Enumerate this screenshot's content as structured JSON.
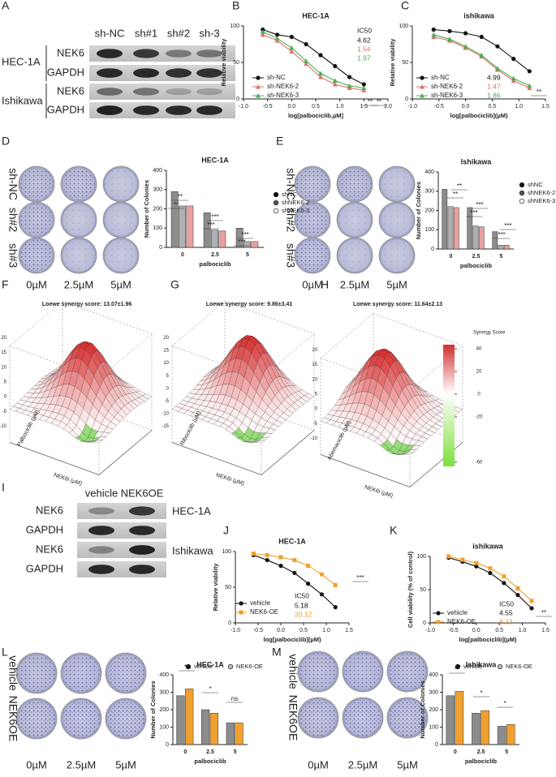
{
  "panel_labels": [
    "A",
    "B",
    "C",
    "D",
    "E",
    "F",
    "G",
    "H",
    "I",
    "J",
    "K",
    "L",
    "M"
  ],
  "blot_a": {
    "lanes": [
      "sh-NC",
      "sh#1",
      "sh#2",
      "sh-3"
    ],
    "cell_lines": [
      "HEC-1A",
      "Ishikawa"
    ],
    "proteins": [
      "NEK6",
      "GAPDH",
      "NEK6",
      "GAPDH"
    ]
  },
  "blot_i": {
    "lanes": [
      "vehicle",
      "NEK6OE"
    ],
    "cell_lines": [
      "HEC-1A",
      "Ishikawa"
    ],
    "proteins": [
      "NEK6",
      "GAPDH",
      "NEK6",
      "GAPDH"
    ]
  },
  "colony_d": {
    "rows": [
      "sh-NC",
      "sh#2",
      "sh#3"
    ],
    "columns": [
      "0µM",
      "2.5µM",
      "5µM"
    ]
  },
  "colony_e": {
    "rows": [
      "sh-NC",
      "sh#2",
      "sh#3"
    ],
    "columns": [
      "0µM",
      "2.5µM",
      "5µM"
    ]
  },
  "colony_l": {
    "rows": [
      "vehicle",
      "NEK6OE"
    ],
    "columns": [
      "0µM",
      "2.5µM",
      "5µM"
    ]
  },
  "colony_m": {
    "rows": [
      "vehicle",
      "NEK6OE"
    ],
    "columns": [
      "0µM",
      "2.5µM",
      "5µM"
    ]
  },
  "synergy": [
    {
      "title": "Loewe synergy score: 13.07±1.96",
      "drug_label": "Palbociclib (µM)",
      "inhibitor_label": "NEK6i (µM)",
      "zticks": [
        20,
        15,
        10,
        5,
        0,
        -5,
        -10
      ]
    },
    {
      "title": "Loewe synergy score: 9.86±3.41",
      "drug_label": "Ribociclib (µM)",
      "inhibitor_label": "NEK6i (µM)",
      "zticks": [
        20,
        15,
        10,
        5,
        0,
        -5,
        -10,
        -15
      ]
    },
    {
      "title": "Loewe synergy score: 11.64±2.13",
      "drug_label": "Abemaciclib (µM)",
      "inhibitor_label": "NEK6i (µM)",
      "zticks": [
        20,
        15,
        10,
        5,
        0,
        -5,
        -10
      ]
    }
  ],
  "colorbar": {
    "title": "Synergy Score",
    "ticks": [
      40,
      20,
      0,
      -20,
      -60
    ]
  },
  "chart_data": [
    {
      "type": "line",
      "title": "HEC-1A",
      "x_label": "log[palbociclib,µM]",
      "y_label": "Relative viability",
      "x": [
        -0.6,
        -0.3,
        0,
        0.3,
        0.6,
        0.9,
        1.2,
        1.5
      ],
      "xlim": [
        -1.0,
        2.0
      ],
      "xticks": [
        {
          "value": -1,
          "label": "-1.0"
        },
        {
          "value": -0.5,
          "label": "-0.5"
        },
        {
          "value": 0,
          "label": "0.0"
        },
        {
          "value": 0.5,
          "label": "0.5"
        },
        {
          "value": 1,
          "label": "1.0"
        },
        {
          "value": 1.5,
          "label": "1.5"
        },
        {
          "value": 2,
          "label": "2.0"
        }
      ],
      "ylim": [
        0,
        100
      ],
      "yticks": [
        0,
        50,
        100
      ],
      "ic50_label": "IC50",
      "series": [
        {
          "name": "sh-NC",
          "color": "#111111",
          "marker": "circle",
          "ic50": "4.62",
          "values": [
            95,
            88,
            85,
            75,
            60,
            45,
            30,
            20
          ]
        },
        {
          "name": "sh-NEK6-2",
          "color": "#e0706a",
          "marker": "triangle",
          "ic50": "1.54",
          "values": [
            88,
            80,
            65,
            48,
            30,
            20,
            15,
            12
          ]
        },
        {
          "name": "sh-NEK6-3",
          "color": "#4caf50",
          "marker": "triangle",
          "ic50": "1.97",
          "values": [
            92,
            83,
            70,
            52,
            35,
            25,
            18,
            15
          ]
        }
      ],
      "annotations": [
        "**",
        "**"
      ]
    },
    {
      "type": "line",
      "title": "ishikawa",
      "x_label": "log[palbociclib](µM)",
      "y_label": "Relative viability",
      "x": [
        -0.6,
        -0.3,
        0,
        0.3,
        0.6,
        0.9,
        1.2
      ],
      "xlim": [
        -1.0,
        1.5
      ],
      "xticks": [
        {
          "value": -1,
          "label": "-1.0"
        },
        {
          "value": -0.5,
          "label": "-0.5"
        },
        {
          "value": 0,
          "label": "0.0"
        },
        {
          "value": 0.5,
          "label": "0.5"
        },
        {
          "value": 1,
          "label": "1.0"
        },
        {
          "value": 1.5,
          "label": "1.5"
        }
      ],
      "ylim": [
        0,
        100
      ],
      "yticks": [
        0,
        50,
        100
      ],
      "series": [
        {
          "name": "sh-NC",
          "color": "#111111",
          "marker": "circle",
          "ic50": "4.99",
          "values": [
            95,
            93,
            90,
            85,
            72,
            55,
            38
          ]
        },
        {
          "name": "sh-NEK6-2",
          "color": "#e0706a",
          "marker": "triangle",
          "ic50": "1.47",
          "values": [
            85,
            80,
            70,
            58,
            40,
            25,
            15
          ]
        },
        {
          "name": "sh-NEK6-3",
          "color": "#4caf50",
          "marker": "triangle",
          "ic50": "1.86",
          "values": [
            88,
            82,
            72,
            60,
            42,
            28,
            18
          ]
        }
      ],
      "annotations": [
        "**"
      ]
    },
    {
      "type": "bar",
      "title": "HEC-1A",
      "x_label": "palbociclib",
      "y_label": "Number of Colonies",
      "categories": [
        "0",
        "2.5",
        "5"
      ],
      "ylim": [
        0,
        400
      ],
      "yticks": [
        0,
        100,
        200,
        300,
        400
      ],
      "series": [
        {
          "name": "shNC",
          "color": "#8c8c8c",
          "values": [
            290,
            180,
            100
          ]
        },
        {
          "name": "shNEK6-2",
          "color": "#b0b0b0",
          "values": [
            215,
            90,
            30
          ]
        },
        {
          "name": "shNEK6-3",
          "color": "#e8a0a0",
          "values": [
            215,
            85,
            30
          ]
        }
      ],
      "annotations": [
        "**",
        "**",
        "***",
        "***",
        "***",
        "***"
      ]
    },
    {
      "type": "bar",
      "title": "Ishikawa",
      "x_label": "palbociclib",
      "y_label": "Number of Colonies",
      "categories": [
        "0",
        "2.5",
        "5"
      ],
      "ylim": [
        0,
        400
      ],
      "yticks": [
        0,
        100,
        200,
        300,
        400
      ],
      "series": [
        {
          "name": "shNC",
          "color": "#8c8c8c",
          "values": [
            310,
            215,
            90
          ]
        },
        {
          "name": "shNEK6-2",
          "color": "#b0b0b0",
          "values": [
            220,
            120,
            20
          ]
        },
        {
          "name": "shNEK6-3",
          "color": "#e8a0a0",
          "values": [
            215,
            115,
            20
          ]
        }
      ],
      "annotations": [
        "**",
        "**",
        "***",
        "***",
        "***",
        "***"
      ]
    },
    {
      "type": "line",
      "title": "HEC-1A",
      "x_label": "log[palbociclib](µM)",
      "y_label": "Relative viability",
      "x": [
        -0.6,
        -0.3,
        0,
        0.3,
        0.6,
        0.9,
        1.2
      ],
      "xlim": [
        -1.0,
        1.5
      ],
      "xticks": [
        {
          "value": -1,
          "label": "-1.0"
        },
        {
          "value": -0.5,
          "label": "-0.5"
        },
        {
          "value": 0,
          "label": "0.0"
        },
        {
          "value": 0.5,
          "label": "0.5"
        },
        {
          "value": 1,
          "label": "1.0"
        },
        {
          "value": 1.5,
          "label": "1.5"
        }
      ],
      "ylim": [
        0,
        100
      ],
      "yticks": [
        0,
        50,
        100
      ],
      "ic50_label": "IC50",
      "series": [
        {
          "name": "vehicle",
          "color": "#111111",
          "marker": "circle",
          "ic50": "5.18",
          "values": [
            95,
            88,
            80,
            70,
            55,
            40,
            22
          ]
        },
        {
          "name": "NEK6-OE",
          "color": "#f0a030",
          "marker": "square",
          "ic50": "20.12",
          "values": [
            97,
            95,
            92,
            88,
            80,
            68,
            53
          ]
        }
      ],
      "annotations": [
        "***"
      ]
    },
    {
      "type": "line",
      "title": "ishikawa",
      "x_label": "log[palbociclib](µM)",
      "y_label": "Cell viability (% of control)",
      "x": [
        -0.6,
        -0.3,
        0,
        0.3,
        0.6,
        0.9,
        1.2
      ],
      "xlim": [
        -1.0,
        1.5
      ],
      "xticks": [
        {
          "value": -1,
          "label": "-1.0"
        },
        {
          "value": -0.5,
          "label": "-0.5"
        },
        {
          "value": 0,
          "label": "0.0"
        },
        {
          "value": 0.5,
          "label": "0.5"
        },
        {
          "value": 1,
          "label": "1.0"
        },
        {
          "value": 1.5,
          "label": "1.5"
        }
      ],
      "ylim": [
        0,
        100
      ],
      "yticks": [
        0,
        50,
        100
      ],
      "ic50_label": "IC50",
      "series": [
        {
          "name": "vehicle",
          "color": "#111111",
          "marker": "circle",
          "ic50": "4.55",
          "values": [
            98,
            92,
            85,
            75,
            60,
            42,
            22
          ]
        },
        {
          "name": "NEK6-OE",
          "color": "#f0a030",
          "marker": "square",
          "ic50": "8.23",
          "values": [
            100,
            95,
            90,
            82,
            70,
            52,
            33
          ]
        }
      ],
      "annotations": [
        "**"
      ]
    },
    {
      "type": "bar",
      "title": "HEC-1A",
      "x_label": "palbociclib",
      "y_label": "Number of Colonies",
      "categories": [
        "0",
        "2.5",
        "5"
      ],
      "ylim": [
        0,
        400
      ],
      "yticks": [
        0,
        100,
        200,
        300,
        400
      ],
      "series": [
        {
          "name": "vehicle",
          "color": "#8c8c8c",
          "values": [
            280,
            200,
            125
          ]
        },
        {
          "name": "NEK6-OE",
          "color": "#f0a030",
          "values": [
            320,
            180,
            125
          ]
        }
      ],
      "annotations": [
        "**",
        "*",
        "ns"
      ]
    },
    {
      "type": "bar",
      "title": "Ishikawa",
      "x_label": "palbociclib",
      "y_label": "Number of Colonies",
      "categories": [
        "0",
        "2.5",
        "5"
      ],
      "ylim": [
        0,
        400
      ],
      "yticks": [
        0,
        100,
        200,
        300,
        400
      ],
      "series": [
        {
          "name": "vehicle",
          "color": "#8c8c8c",
          "values": [
            280,
            180,
            105
          ]
        },
        {
          "name": "NEK6-OE",
          "color": "#f0a030",
          "values": [
            305,
            195,
            115
          ]
        }
      ],
      "annotations": [
        "**",
        "*",
        "*"
      ]
    }
  ]
}
